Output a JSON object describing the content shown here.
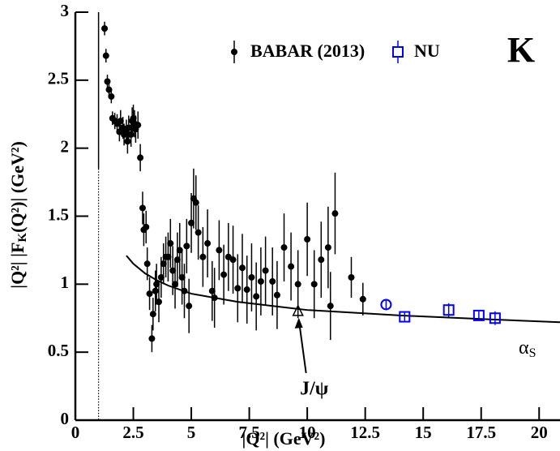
{
  "chart_data": {
    "type": "scatter",
    "x_label": "|Q²|  (GeV²)",
    "y_label": {
      "main": "|Q²| |F",
      "sub": "K",
      "rest": "(Q²)|  (GeV²)"
    },
    "panel_label": "K",
    "xlim": [
      0,
      20.9
    ],
    "ylim": [
      0,
      3
    ],
    "xticks": [
      0,
      2.5,
      5,
      7.5,
      10,
      12.5,
      15,
      17.5,
      20
    ],
    "yticks": [
      0,
      0.5,
      1,
      1.5,
      2,
      2.5,
      3
    ],
    "reference_line": {
      "x": 1,
      "solid_above": 1.85
    },
    "series": [
      {
        "name": "BABAR (2013)",
        "color": "#000000",
        "marker": "filled-circle",
        "x": [
          1.26,
          1.32,
          1.38,
          1.45,
          1.55,
          1.6,
          1.7,
          1.8,
          1.9,
          1.95,
          2.05,
          2.1,
          2.2,
          2.25,
          2.3,
          2.4,
          2.45,
          2.5,
          2.55,
          2.6,
          2.7,
          2.8,
          2.9,
          2.95,
          3.05,
          3.1,
          3.2,
          3.3,
          3.35,
          3.45,
          3.5,
          3.6,
          3.7,
          3.8,
          3.9,
          4.0,
          4.1,
          4.2,
          4.3,
          4.4,
          4.5,
          4.6,
          4.7,
          4.8,
          4.9,
          5.0,
          5.1,
          5.2,
          5.3,
          5.5,
          5.7,
          5.9,
          6.0,
          6.2,
          6.4,
          6.6,
          6.8,
          7.0,
          7.2,
          7.4,
          7.6,
          7.8,
          8.0,
          8.2,
          8.5,
          8.7,
          9.0,
          9.3,
          9.6,
          10.0,
          10.3,
          10.6,
          10.9,
          11.0,
          11.2,
          11.9,
          12.4
        ],
        "values": [
          2.88,
          2.68,
          2.49,
          2.43,
          2.38,
          2.22,
          2.2,
          2.18,
          2.12,
          2.2,
          2.15,
          2.1,
          2.12,
          2.05,
          2.15,
          2.1,
          2.2,
          2.22,
          2.18,
          2.14,
          2.17,
          1.93,
          1.56,
          1.4,
          1.42,
          1.15,
          0.93,
          0.6,
          0.78,
          0.95,
          1.0,
          0.87,
          1.05,
          1.15,
          1.2,
          1.2,
          1.3,
          1.1,
          1.0,
          1.18,
          1.25,
          1.05,
          0.95,
          1.28,
          0.84,
          1.45,
          1.63,
          1.6,
          1.38,
          1.2,
          1.3,
          0.95,
          0.9,
          1.25,
          1.07,
          1.2,
          1.18,
          0.97,
          1.12,
          0.96,
          1.05,
          0.91,
          1.02,
          1.1,
          1.02,
          0.92,
          1.27,
          1.13,
          1.0,
          1.33,
          1.0,
          1.18,
          1.27,
          0.84,
          1.52,
          1.05,
          0.89
        ],
        "errors": [
          0.05,
          0.05,
          0.05,
          0.05,
          0.05,
          0.05,
          0.06,
          0.07,
          0.07,
          0.08,
          0.08,
          0.08,
          0.09,
          0.09,
          0.09,
          0.09,
          0.1,
          0.1,
          0.1,
          0.1,
          0.1,
          0.1,
          0.12,
          0.12,
          0.12,
          0.12,
          0.12,
          0.1,
          0.12,
          0.15,
          0.15,
          0.15,
          0.15,
          0.15,
          0.15,
          0.18,
          0.18,
          0.18,
          0.18,
          0.2,
          0.2,
          0.2,
          0.2,
          0.2,
          0.2,
          0.22,
          0.22,
          0.2,
          0.2,
          0.22,
          0.25,
          0.22,
          0.22,
          0.22,
          0.22,
          0.25,
          0.25,
          0.25,
          0.25,
          0.25,
          0.25,
          0.25,
          0.25,
          0.25,
          0.25,
          0.25,
          0.25,
          0.25,
          0.25,
          0.27,
          0.25,
          0.28,
          0.3,
          0.25,
          0.3,
          0.15,
          0.12
        ]
      },
      {
        "name": "NU",
        "color": "#0000ff",
        "marker": "open-square",
        "x": [
          13.4,
          14.2,
          16.1,
          17.4,
          18.1
        ],
        "values": [
          0.85,
          0.76,
          0.81,
          0.77,
          0.75
        ],
        "errors": [
          0.03,
          0.03,
          0.05,
          0.03,
          0.05
        ],
        "markers": [
          "circle",
          "square",
          "square",
          "square",
          "square"
        ]
      }
    ],
    "curve": {
      "color": "#000000",
      "x": [
        2.2,
        2.5,
        3,
        3.5,
        4,
        5,
        6,
        7,
        8,
        10,
        12,
        14,
        16,
        18,
        20.9
      ],
      "y": [
        1.21,
        1.15,
        1.08,
        1.03,
        0.99,
        0.93,
        0.9,
        0.87,
        0.85,
        0.81,
        0.79,
        0.77,
        0.755,
        0.74,
        0.72
      ]
    },
    "jpsi": {
      "label": "J/ψ",
      "x": 9.6,
      "y": 0.8
    },
    "alpha_label": {
      "text": "α",
      "sub": "S"
    }
  }
}
